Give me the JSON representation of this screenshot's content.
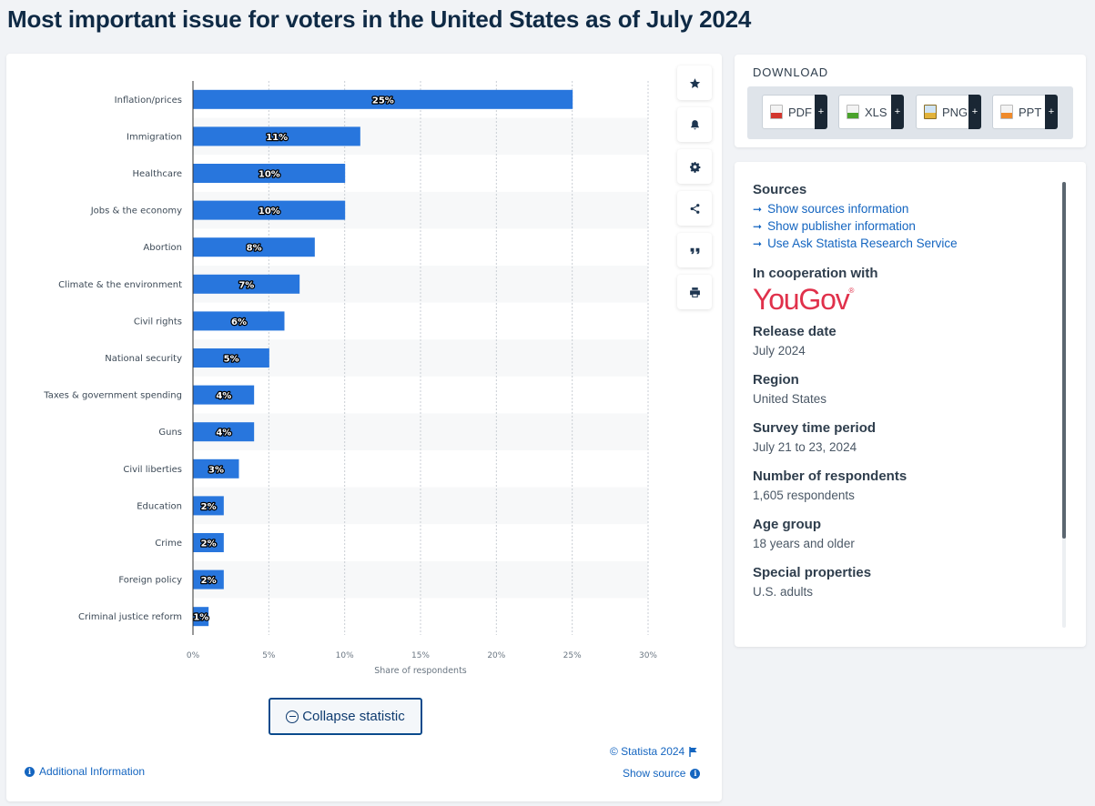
{
  "page": {
    "title": "Most important issue for voters in the United States as of July 2024"
  },
  "chart_data": {
    "type": "bar",
    "orientation": "horizontal",
    "categories": [
      "Inflation/prices",
      "Immigration",
      "Healthcare",
      "Jobs & the economy",
      "Abortion",
      "Climate & the environment",
      "Civil rights",
      "National security",
      "Taxes & government spending",
      "Guns",
      "Civil liberties",
      "Education",
      "Crime",
      "Foreign policy",
      "Criminal justice reform"
    ],
    "values": [
      25,
      11,
      10,
      10,
      8,
      7,
      6,
      5,
      4,
      4,
      3,
      2,
      2,
      2,
      1
    ],
    "value_labels": [
      "25%",
      "11%",
      "10%",
      "10%",
      "8%",
      "7%",
      "6%",
      "5%",
      "4%",
      "4%",
      "3%",
      "2%",
      "2%",
      "2%",
      "1%"
    ],
    "xlabel": "Share of respondents",
    "ylabel": "",
    "xlim": [
      0,
      30
    ],
    "x_ticks": [
      "0%",
      "5%",
      "10%",
      "15%",
      "20%",
      "25%",
      "30%"
    ],
    "bar_color": "#2876dd",
    "grid": true
  },
  "toolbar": {
    "icons": [
      "star-icon",
      "bell-icon",
      "gear-icon",
      "share-icon",
      "quote-icon",
      "print-icon"
    ]
  },
  "collapse": {
    "label": "Collapse statistic"
  },
  "footer": {
    "additional_info": "Additional Information",
    "copyright": "© Statista 2024",
    "show_source": "Show source"
  },
  "download": {
    "title": "DOWNLOAD",
    "buttons": [
      {
        "label": "PDF",
        "color": "#d2362e"
      },
      {
        "label": "XLS",
        "color": "#4aa22c"
      },
      {
        "label": "PNG",
        "color": "#e2b23a"
      },
      {
        "label": "PPT",
        "color": "#ef8a2b"
      }
    ],
    "plus": "+"
  },
  "info": {
    "sources_heading": "Sources",
    "links": [
      "Show sources information",
      "Show publisher information",
      "Use Ask Statista Research Service"
    ],
    "coop_heading": "In cooperation with",
    "coop_logo_text": "YouGov",
    "coop_logo_mark": "®",
    "release_heading": "Release date",
    "release_value": "July 2024",
    "region_heading": "Region",
    "region_value": "United States",
    "period_heading": "Survey time period",
    "period_value": "July 21 to 23, 2024",
    "respondents_heading": "Number of respondents",
    "respondents_value": "1,605 respondents",
    "age_heading": "Age group",
    "age_value": "18 years and older",
    "special_heading": "Special properties",
    "special_value": "U.S. adults"
  },
  "colors": {
    "accent": "#1465c0",
    "title": "#0f2a45",
    "yougov": "#e0314b"
  }
}
